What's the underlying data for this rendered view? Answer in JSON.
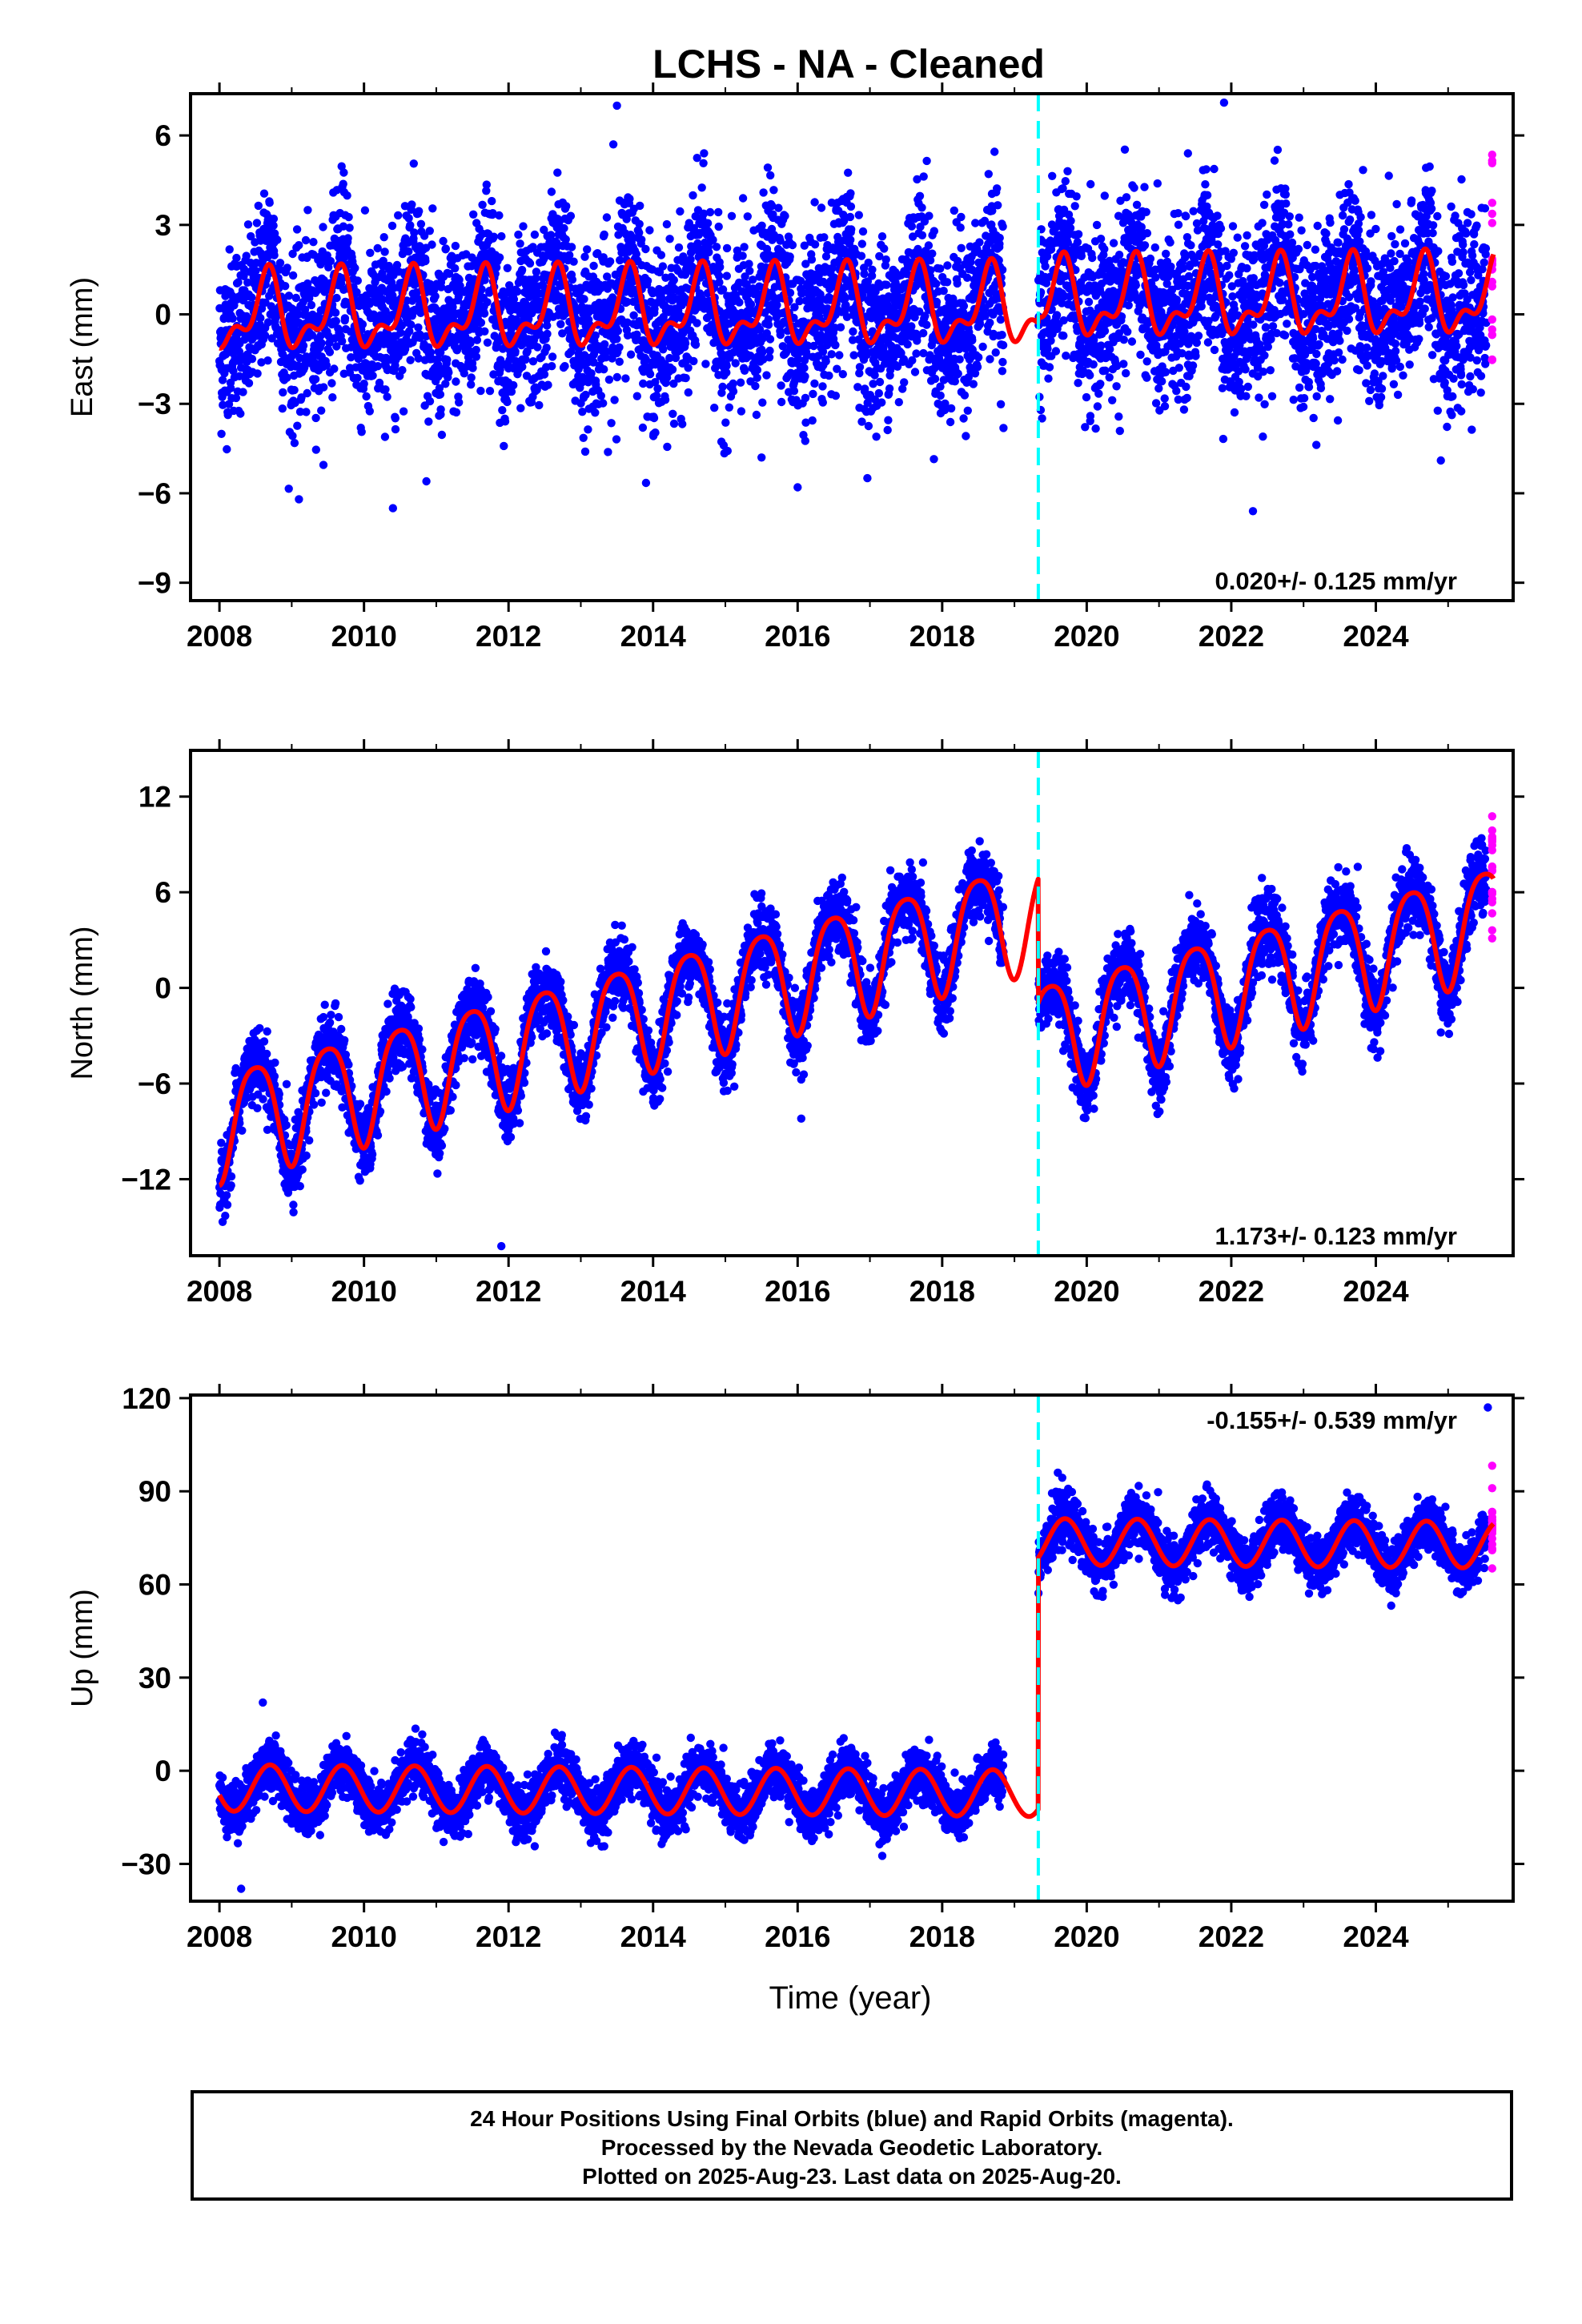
{
  "title": "LCHS  - NA - Cleaned",
  "xlabel": "Time (year)",
  "footer": {
    "line1": "24 Hour Positions Using Final Orbits (blue) and Rapid Orbits (magenta).",
    "line2": "Processed by the Nevada Geodetic Laboratory.",
    "line3": "Plotted on 2025-Aug-23. Last data on 2025-Aug-20."
  },
  "colors": {
    "final_orbits": "#0000ff",
    "rapid_orbits": "#ff00ff",
    "model_fit": "#ff0000",
    "event_line": "#00ffff"
  },
  "chart_data": [
    {
      "type": "scatter",
      "name": "east",
      "ylabel": "East (mm)",
      "xlim": [
        2007.6,
        2025.9
      ],
      "ylim": [
        -9.6,
        7.4
      ],
      "xticks": [
        2008,
        2010,
        2012,
        2014,
        2016,
        2018,
        2020,
        2022,
        2024
      ],
      "yticks": [
        -9,
        -6,
        -3,
        0,
        3,
        6
      ],
      "ytick_labels": [
        "−9",
        "−6",
        "−3",
        "0",
        "3",
        "6"
      ],
      "rate_label": "0.020+/- 0.125 mm/yr",
      "rate_position": "bottom-right",
      "event_line_x": 2019.33,
      "data_start": 2008.0,
      "data_end": 2025.63,
      "gap": [
        2018.85,
        2019.33
      ],
      "rapid_start": 2025.53,
      "model": {
        "offset_before": 0.0,
        "offset_after": 0.2,
        "step_at": 2019.33,
        "trend": 0.02,
        "annual_amp": 1.1,
        "annual_phase_year": 0.65,
        "semiannual_amp": 0.6,
        "semiannual_phase_year": 0.2
      },
      "scatter_sd": 1.4,
      "outliers": [
        [
          2013.5,
          7.0
        ],
        [
          2013.45,
          5.7
        ],
        [
          2021.9,
          7.1
        ],
        [
          2021.4,
          5.4
        ],
        [
          2010.4,
          -6.5
        ],
        [
          2009.1,
          -6.2
        ],
        [
          2022.3,
          -6.6
        ],
        [
          2016.0,
          -5.8
        ],
        [
          2015.5,
          -4.8
        ],
        [
          2024.9,
          -4.9
        ]
      ]
    },
    {
      "type": "scatter",
      "name": "north",
      "ylabel": "North (mm)",
      "xlim": [
        2007.6,
        2025.9
      ],
      "ylim": [
        -16.8,
        14.9
      ],
      "xticks": [
        2008,
        2010,
        2012,
        2014,
        2016,
        2018,
        2020,
        2022,
        2024
      ],
      "yticks": [
        -12,
        -6,
        0,
        6,
        12
      ],
      "ytick_labels": [
        "−12",
        "−6",
        "0",
        "6",
        "12"
      ],
      "rate_label": "1.173+/- 0.123 mm/yr",
      "rate_position": "bottom-right",
      "event_line_x": 2019.33,
      "data_start": 2008.0,
      "data_end": 2025.63,
      "gap": [
        2018.85,
        2019.33
      ],
      "rapid_start": 2025.53,
      "model": {
        "offset_before": -8.4,
        "offset_after": -16.2,
        "step_at": 2019.33,
        "trend": 1.173,
        "annual_amp": 3.4,
        "annual_phase_year": 0.5,
        "semiannual_amp": 0.6,
        "semiannual_phase_year": 0.25
      },
      "scatter_sd": 1.1,
      "outliers": [
        [
          2011.9,
          -16.2
        ],
        [
          2016.05,
          -8.2
        ],
        [
          2024.9,
          -2.8
        ],
        [
          2008.1,
          -13.0
        ]
      ]
    },
    {
      "type": "scatter",
      "name": "up",
      "ylabel": "Up (mm)",
      "xlim": [
        2007.6,
        2025.9
      ],
      "ylim": [
        -42,
        121
      ],
      "xticks": [
        2008,
        2010,
        2012,
        2014,
        2016,
        2018,
        2020,
        2022,
        2024
      ],
      "yticks": [
        -30,
        0,
        30,
        60,
        90,
        120
      ],
      "ytick_labels": [
        "−30",
        "0",
        "30",
        "60",
        "90",
        "120"
      ],
      "rate_label": "-0.155+/- 0.539 mm/yr",
      "rate_position": "top-right",
      "event_line_x": 2019.33,
      "data_start": 2008.0,
      "data_end": 2025.63,
      "gap": [
        2018.85,
        2019.33
      ],
      "rapid_start": 2025.53,
      "model": {
        "offset_before": -5.5,
        "offset_after": 75.5,
        "step_at": 2019.33,
        "trend": -0.155,
        "annual_amp": 7.5,
        "annual_phase_year": 0.7,
        "semiannual_amp": 0.0,
        "semiannual_phase_year": 0.0
      },
      "scatter_sd": 4.2,
      "outliers": [
        [
          2008.3,
          -38.0
        ],
        [
          2008.6,
          22.0
        ],
        [
          2019.6,
          96.0
        ],
        [
          2025.55,
          117.0
        ]
      ]
    }
  ]
}
